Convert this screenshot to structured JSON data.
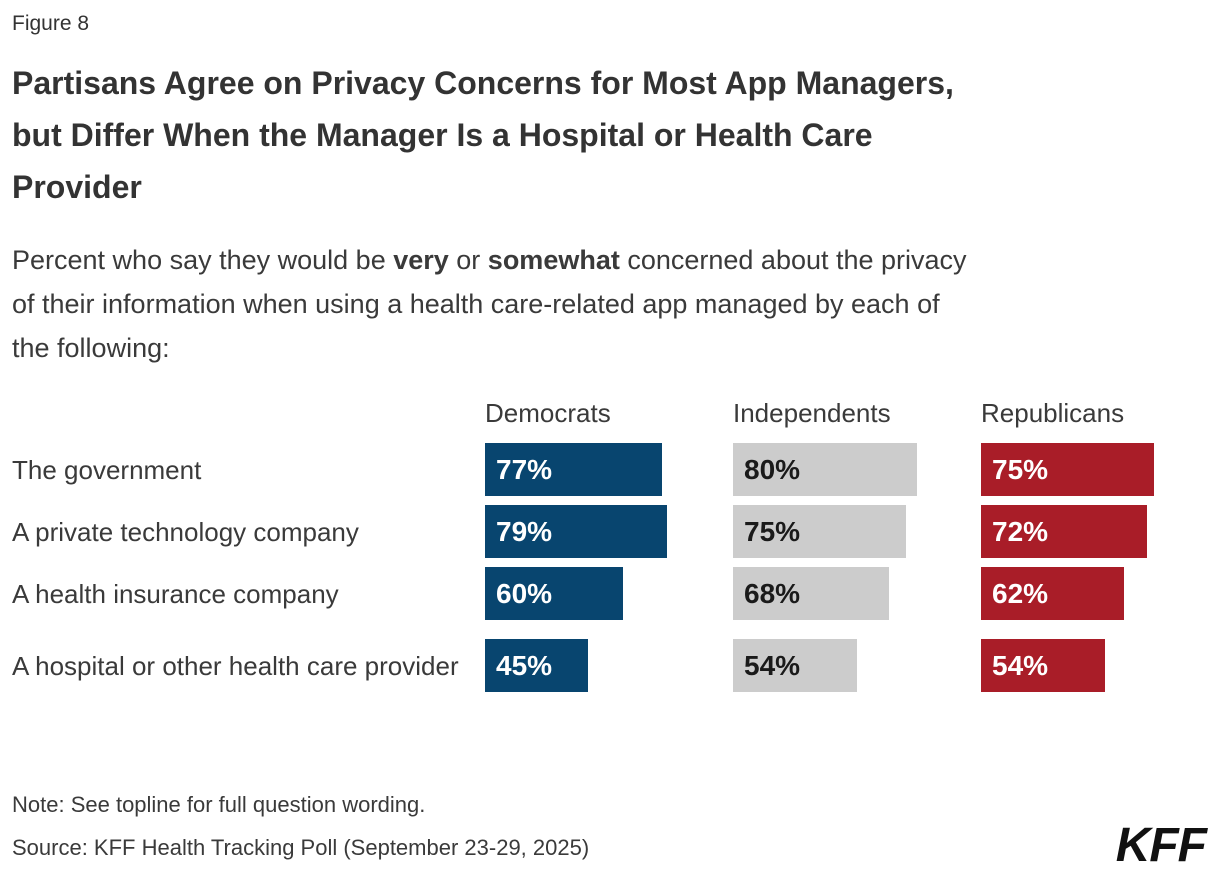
{
  "figure_label": "Figure 8",
  "title_lines": [
    "Partisans Agree on Privacy Concerns for Most App Managers,",
    "but Differ When the Manager Is a Hospital or Health Care",
    "Provider"
  ],
  "subtitle": {
    "line1_pre": "Percent who say they would be ",
    "line1_bold1": "very",
    "line1_mid": " or ",
    "line1_bold2": "somewhat",
    "line1_post": " concerned about the privacy",
    "line2": "of their information when using a health care-related app managed by each of",
    "line3": "the following:"
  },
  "note": "Note: See topline for full question wording.",
  "source": "Source: KFF Health Tracking Poll (September 23-29, 2025)",
  "logo_text": "KFF",
  "colors": {
    "democrat_blue": "#08456F",
    "independent_gray": "#CCCCCC",
    "republican_red": "#A91D28",
    "text_dark": "#333333",
    "text_body": "#3A3A3A"
  },
  "chart_data": {
    "type": "bar",
    "orientation": "horizontal",
    "title": "Partisans Agree on Privacy Concerns for Most App Managers, but Differ When the Manager Is a Hospital or Health Care Provider",
    "subtitle": "Percent who say they would be very or somewhat concerned about the privacy of their information when using a health care-related app managed by each of the following:",
    "categories": [
      "The government",
      "A private technology company",
      "A health insurance company",
      "A hospital or other health care provider"
    ],
    "series": [
      {
        "name": "Democrats",
        "color": "#08456F",
        "value_label_color": "#FFFFFF",
        "values": [
          77,
          79,
          60,
          45
        ]
      },
      {
        "name": "Independents",
        "color": "#CCCCCC",
        "value_label_color": "#1A1A1A",
        "values": [
          80,
          75,
          68,
          54
        ]
      },
      {
        "name": "Republicans",
        "color": "#A91D28",
        "value_label_color": "#FFFFFF",
        "values": [
          75,
          72,
          62,
          54
        ]
      }
    ],
    "value_suffix": "%",
    "xlim": [
      0,
      100
    ],
    "grid": false,
    "legend_position": "column-headers",
    "value_labels": "inside-left"
  }
}
